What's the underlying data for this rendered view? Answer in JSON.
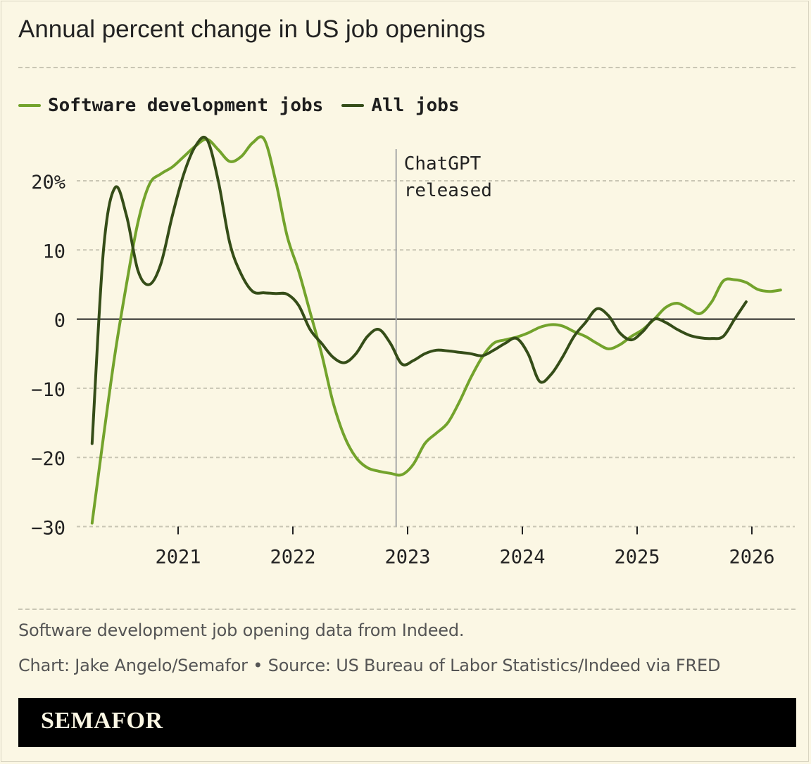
{
  "title": "Annual percent change in US job openings",
  "notes": {
    "data_note": "Software development job opening data from Indeed.",
    "credit": "Chart: Jake Angelo/Semafor • Source: US Bureau of Labor Statistics/Indeed via FRED"
  },
  "brand": "SEMAFOR",
  "colors": {
    "background": "#fbf7e4",
    "software": "#73a32c",
    "all_jobs": "#354d18",
    "annotation_line": "#a8a8a8"
  },
  "chart_data": {
    "type": "line",
    "title": "Annual percent change in US job openings",
    "xlabel": "",
    "ylabel": "",
    "xlim": [
      2020.25,
      2026.4
    ],
    "ylim": [
      -30,
      26
    ],
    "yticks": [
      20,
      10,
      0,
      -10,
      -20,
      -30
    ],
    "ytick_labels": [
      "20%",
      "10",
      "0",
      "−10",
      "−20",
      "−30"
    ],
    "xticks": [
      2021,
      2022,
      2023,
      2024,
      2025,
      2026
    ],
    "xtick_labels": [
      "2021",
      "2022",
      "2023",
      "2024",
      "2025",
      "2026"
    ],
    "grid": true,
    "legend_position": "top-left",
    "annotation": {
      "x": 2022.9,
      "text": [
        "ChatGPT",
        "released"
      ]
    },
    "series": [
      {
        "name": "Software development jobs",
        "color": "#73a32c",
        "x": [
          2020.25,
          2020.35,
          2020.45,
          2020.55,
          2020.65,
          2020.75,
          2020.85,
          2020.95,
          2021.05,
          2021.15,
          2021.25,
          2021.35,
          2021.45,
          2021.55,
          2021.65,
          2021.75,
          2021.85,
          2021.95,
          2022.05,
          2022.15,
          2022.25,
          2022.35,
          2022.45,
          2022.55,
          2022.65,
          2022.75,
          2022.85,
          2022.95,
          2023.05,
          2023.15,
          2023.25,
          2023.35,
          2023.45,
          2023.55,
          2023.65,
          2023.75,
          2023.85,
          2023.95,
          2024.05,
          2024.15,
          2024.25,
          2024.35,
          2024.45,
          2024.55,
          2024.65,
          2024.75,
          2024.85,
          2024.95,
          2025.05,
          2025.15,
          2025.25,
          2025.35,
          2025.45,
          2025.55,
          2025.65,
          2025.75,
          2025.85,
          2025.95,
          2026.05,
          2026.15,
          2026.25
        ],
        "values": [
          -29.5,
          -17,
          -5,
          5,
          14,
          19.5,
          21,
          22,
          23.5,
          25,
          26,
          24.5,
          22.8,
          23.5,
          25.5,
          26,
          20,
          12,
          7,
          1,
          -5,
          -12,
          -17,
          -20,
          -21.5,
          -22,
          -22.3,
          -22.5,
          -21,
          -18,
          -16.5,
          -15,
          -12,
          -8.5,
          -5.5,
          -3.5,
          -3,
          -2.6,
          -2,
          -1.2,
          -0.8,
          -1,
          -1.8,
          -2.5,
          -3.5,
          -4.3,
          -3.7,
          -2.5,
          -1.5,
          0,
          1.7,
          2.3,
          1.5,
          0.8,
          2.5,
          5.5,
          5.7,
          5.3,
          4.3,
          4,
          4.2
        ]
      },
      {
        "name": "All jobs",
        "color": "#354d18",
        "x": [
          2020.25,
          2020.35,
          2020.45,
          2020.55,
          2020.65,
          2020.75,
          2020.85,
          2020.95,
          2021.05,
          2021.15,
          2021.25,
          2021.35,
          2021.45,
          2021.55,
          2021.65,
          2021.75,
          2021.85,
          2021.95,
          2022.05,
          2022.15,
          2022.25,
          2022.35,
          2022.45,
          2022.55,
          2022.65,
          2022.75,
          2022.85,
          2022.95,
          2023.05,
          2023.15,
          2023.25,
          2023.35,
          2023.45,
          2023.55,
          2023.65,
          2023.75,
          2023.85,
          2023.95,
          2024.05,
          2024.15,
          2024.25,
          2024.35,
          2024.45,
          2024.55,
          2024.65,
          2024.75,
          2024.85,
          2024.95,
          2025.05,
          2025.15,
          2025.25,
          2025.35,
          2025.45,
          2025.55,
          2025.65,
          2025.75,
          2025.85,
          2025.95
        ],
        "values": [
          -18,
          10,
          19,
          15,
          7,
          5,
          8,
          15,
          21,
          25,
          26,
          20,
          11,
          6.5,
          4,
          3.8,
          3.7,
          3.6,
          2,
          -1.5,
          -3.5,
          -5.5,
          -6.3,
          -5,
          -2.5,
          -1.5,
          -3.5,
          -6.5,
          -6,
          -5,
          -4.5,
          -4.6,
          -4.8,
          -5,
          -5.3,
          -4.5,
          -3.5,
          -2.8,
          -5,
          -9,
          -8,
          -5.5,
          -2.5,
          -0.5,
          1.5,
          0.5,
          -2,
          -3,
          -1.8,
          0,
          -0.5,
          -1.5,
          -2.3,
          -2.7,
          -2.8,
          -2.5,
          0,
          2.5
        ]
      }
    ]
  }
}
